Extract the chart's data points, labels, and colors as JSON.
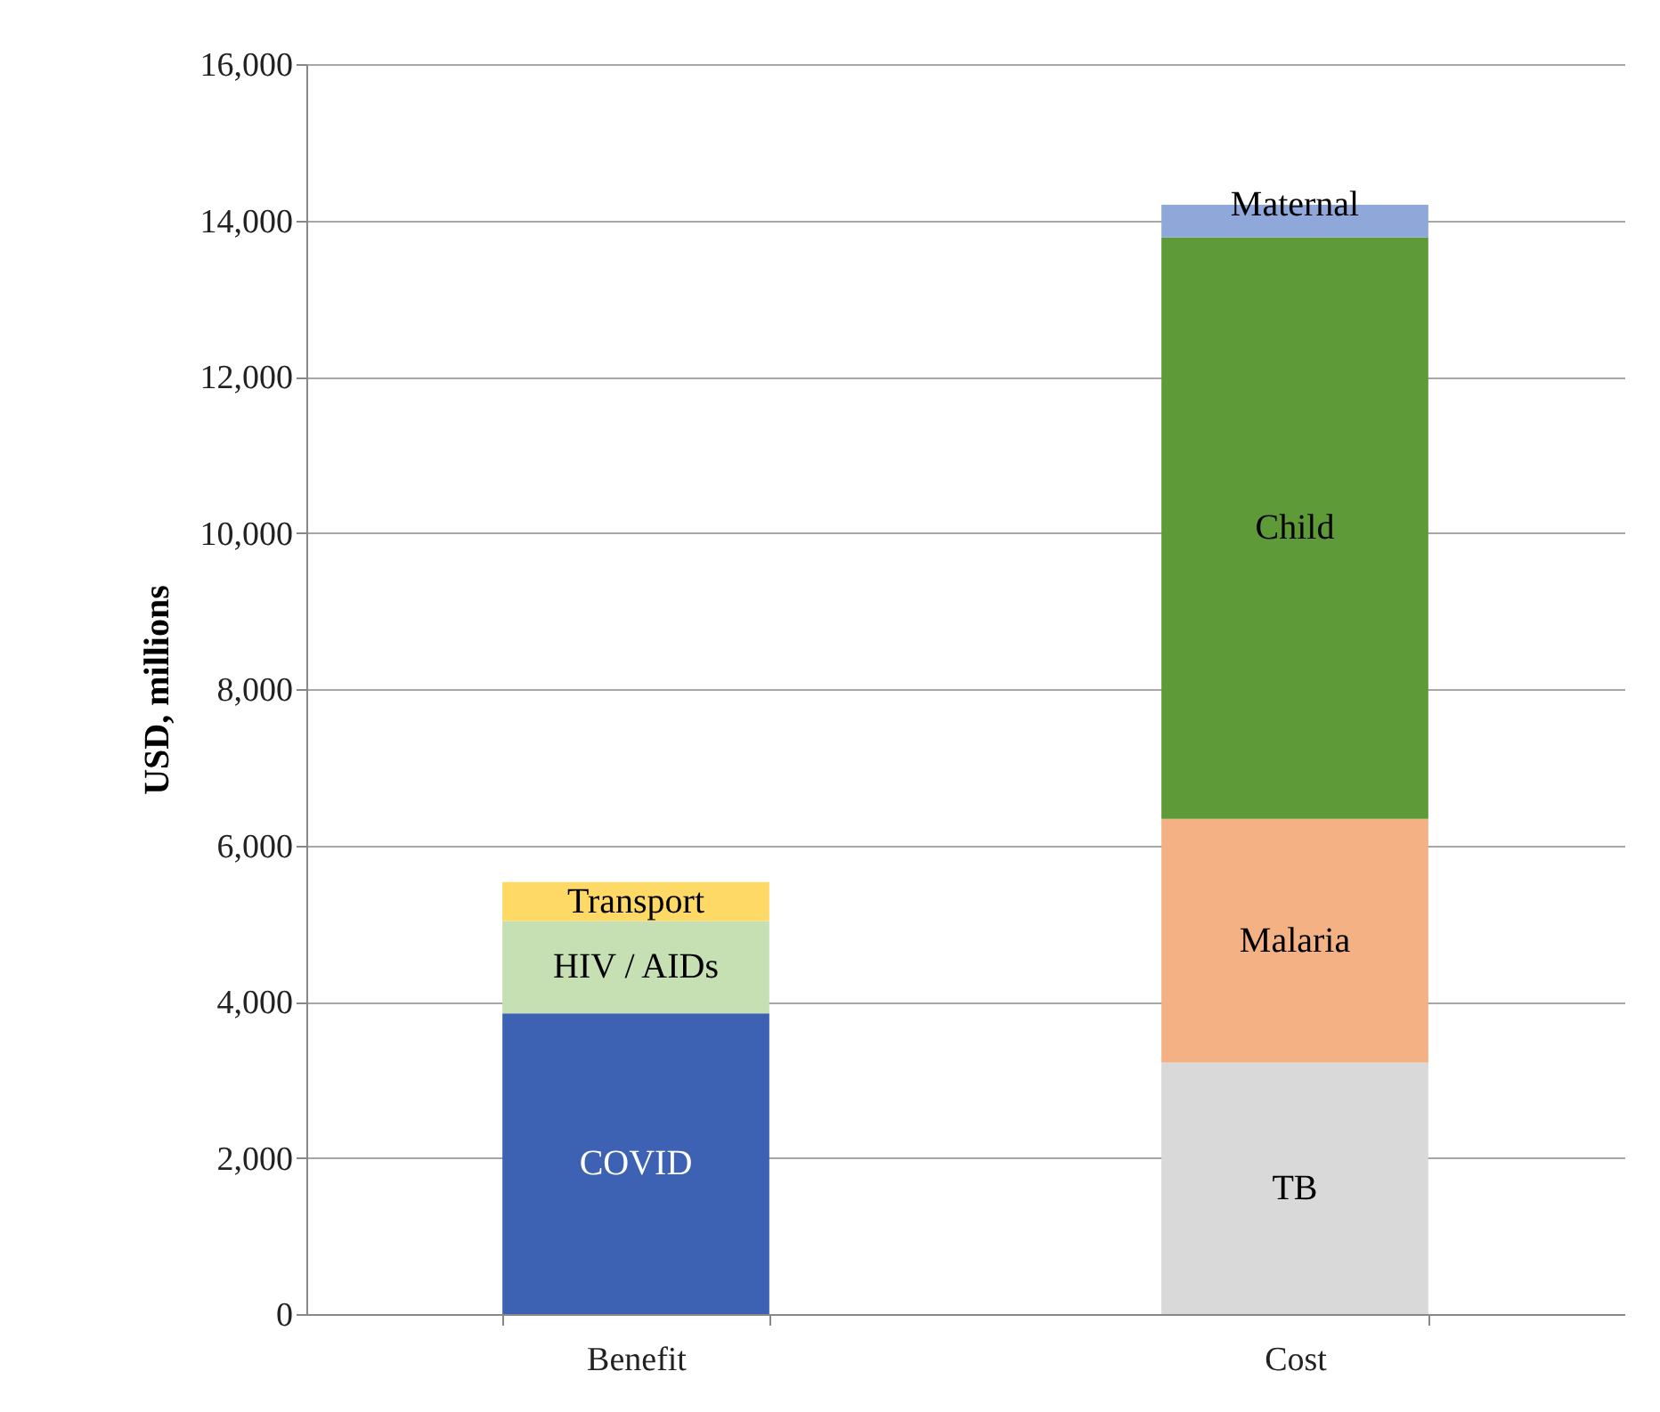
{
  "chart_data": {
    "type": "bar",
    "stacked": true,
    "ylabel": "USD, millions",
    "categories": [
      "Benefit",
      "Cost"
    ],
    "series": [
      {
        "name": "COVID",
        "color": "#3d62b4",
        "values": [
          3850,
          null
        ]
      },
      {
        "name": "HIV / AIDs",
        "color": "#c6e0b4",
        "values": [
          1180,
          null
        ]
      },
      {
        "name": "Transport",
        "color": "#ffd966",
        "values": [
          500,
          null
        ]
      },
      {
        "name": "TB",
        "color": "#d9d9d9",
        "values": [
          null,
          3220
        ]
      },
      {
        "name": "Malaria",
        "color": "#f4b183",
        "values": [
          null,
          3120
        ]
      },
      {
        "name": "Child",
        "color": "#5f9a38",
        "values": [
          null,
          7440
        ]
      },
      {
        "name": "Maternal",
        "color": "#8fa7d9",
        "values": [
          null,
          420
        ]
      }
    ],
    "ylim": [
      0,
      16000
    ],
    "yticks": [
      0,
      {
        "value": 2000,
        "label": "2,000"
      },
      {
        "value": 4000,
        "label": "4,000"
      },
      {
        "value": 6000,
        "label": "6,000"
      },
      {
        "value": 8000,
        "label": "8,000"
      },
      {
        "value": 10000,
        "label": "10,000"
      },
      {
        "value": 12000,
        "label": "12,000"
      },
      {
        "value": 14000,
        "label": "14,000"
      },
      {
        "value": 16000,
        "label": "16,000"
      }
    ],
    "grid": "y"
  }
}
